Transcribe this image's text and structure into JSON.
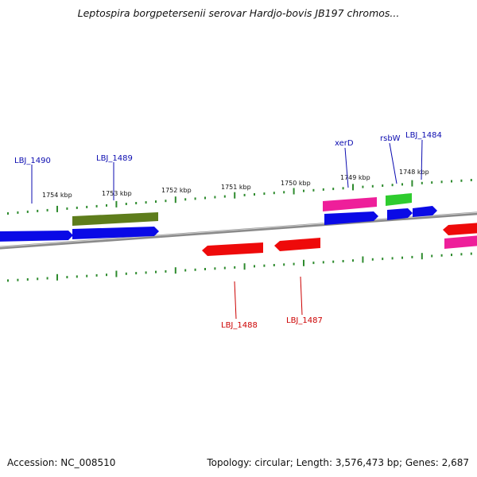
{
  "title": "Leptospira borgpetersenii serovar Hardjo-bovis JB197 chromos...",
  "footer": {
    "accession": "Accession: NC_008510",
    "stats": "Topology: circular; Length: 3,576,473 bp; Genes: 2,687"
  },
  "colors": {
    "backbone": "#8a8a8a",
    "tick": "#2e8b2e",
    "forward_label": "#0b0bb0",
    "reverse_label": "#cc0000",
    "blue": "#0a0ae6",
    "red": "#ee0a0a",
    "olive": "#5e7d1c",
    "pink": "#ee1f9a",
    "green": "#2ecc2e"
  },
  "ticks": [
    {
      "label": "1754 kbp"
    },
    {
      "label": "1753 kbp"
    },
    {
      "label": "1752 kbp"
    },
    {
      "label": "1751 kbp"
    },
    {
      "label": "1750 kbp"
    },
    {
      "label": "1749 kbp"
    },
    {
      "label": "1748 kbp"
    }
  ],
  "genes": [
    {
      "name": "LBJ_1490",
      "strand": "forward",
      "color": "blue"
    },
    {
      "name": "LBJ_1489",
      "strand": "forward",
      "color": "blue"
    },
    {
      "name": "LBJ_1488",
      "strand": "reverse",
      "color": "red"
    },
    {
      "name": "LBJ_1487",
      "strand": "reverse",
      "color": "red"
    },
    {
      "name": "xerD",
      "strand": "forward",
      "color": "blue"
    },
    {
      "name": "rsbW",
      "strand": "forward",
      "color": "blue"
    },
    {
      "name": "LBJ_1484",
      "strand": "forward",
      "color": "blue"
    }
  ]
}
